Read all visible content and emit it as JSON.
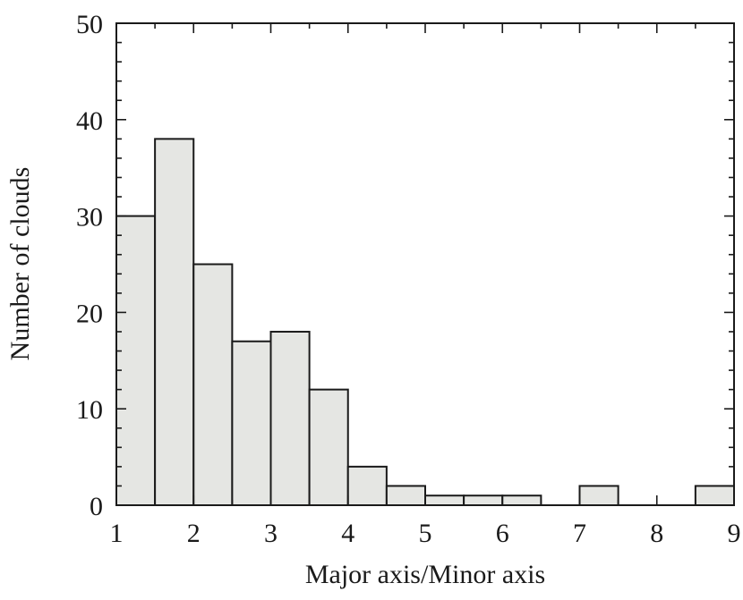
{
  "chart_data": {
    "type": "bar",
    "xlabel": "Major axis/Minor axis",
    "ylabel": "Number of clouds",
    "xlim": [
      1,
      9
    ],
    "ylim": [
      0,
      50
    ],
    "bin_width": 0.5,
    "bin_starts": [
      1,
      1.5,
      2,
      2.5,
      3,
      3.5,
      4,
      4.5,
      5,
      5.5,
      6,
      6.5,
      7,
      7.5,
      8,
      8.5
    ],
    "values": [
      30,
      38,
      25,
      17,
      18,
      12,
      4,
      2,
      1,
      1,
      1,
      0,
      2,
      0,
      0,
      2
    ],
    "x_ticks": [
      "1",
      "2",
      "3",
      "4",
      "5",
      "6",
      "7",
      "8",
      "9"
    ],
    "y_ticks": [
      "0",
      "10",
      "20",
      "30",
      "40",
      "50"
    ],
    "grid": false,
    "colors": {
      "bar_fill": "#e5e6e3",
      "bar_edge": "#1a1a1a"
    }
  }
}
